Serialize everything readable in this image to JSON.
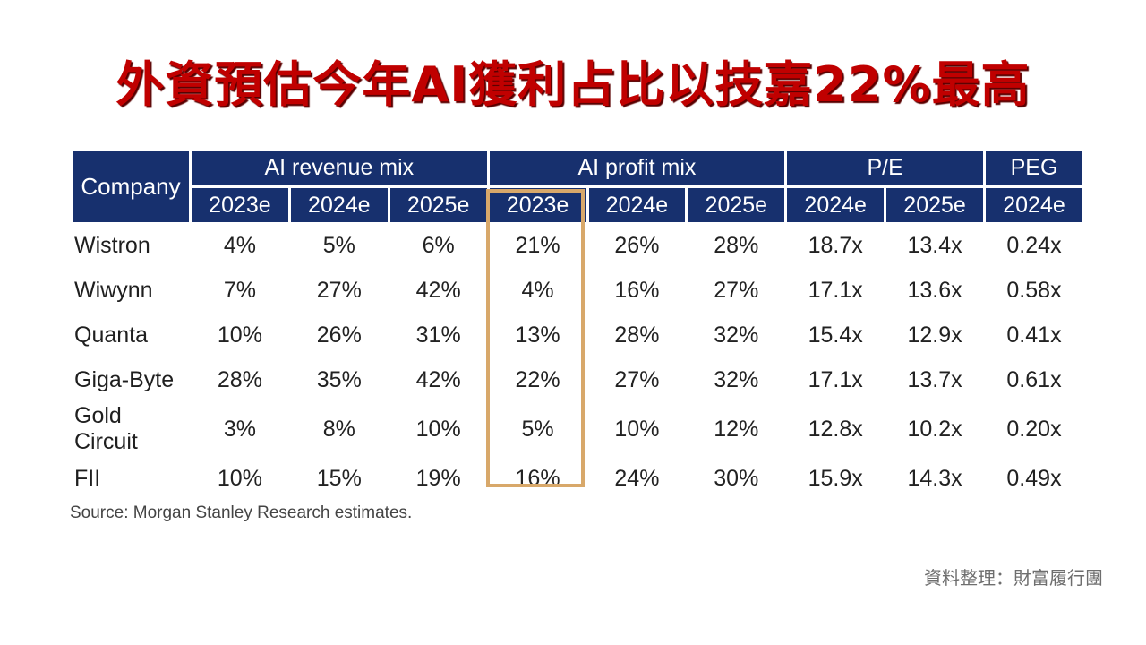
{
  "title": "外資預估今年AI獲利占比以技嘉22%最高",
  "table": {
    "company_header": "Company",
    "groups": [
      "AI revenue mix",
      "AI profit mix",
      "P/E",
      "PEG"
    ],
    "years": [
      "2023e",
      "2024e",
      "2025e",
      "2023e",
      "2024e",
      "2025e",
      "2024e",
      "2025e",
      "2024e"
    ],
    "rows": [
      {
        "company": "Wistron",
        "values": [
          "4%",
          "5%",
          "6%",
          "21%",
          "26%",
          "28%",
          "18.7x",
          "13.4x",
          "0.24x"
        ]
      },
      {
        "company": "Wiwynn",
        "values": [
          "7%",
          "27%",
          "42%",
          "4%",
          "16%",
          "27%",
          "17.1x",
          "13.6x",
          "0.58x"
        ]
      },
      {
        "company": "Quanta",
        "values": [
          "10%",
          "26%",
          "31%",
          "13%",
          "28%",
          "32%",
          "15.4x",
          "12.9x",
          "0.41x"
        ]
      },
      {
        "company": "Giga-Byte",
        "values": [
          "28%",
          "35%",
          "42%",
          "22%",
          "27%",
          "32%",
          "17.1x",
          "13.7x",
          "0.61x"
        ]
      },
      {
        "company": "Gold Circuit",
        "values": [
          "3%",
          "8%",
          "10%",
          "5%",
          "10%",
          "12%",
          "12.8x",
          "10.2x",
          "0.20x"
        ]
      },
      {
        "company": "FII",
        "values": [
          "10%",
          "15%",
          "19%",
          "16%",
          "24%",
          "30%",
          "15.9x",
          "14.3x",
          "0.49x"
        ]
      }
    ]
  },
  "source": "Source: Morgan Stanley Research estimates.",
  "credit": "資料整理：財富履行團",
  "colors": {
    "title": "#c00000",
    "header_bg": "#17306e",
    "highlight_border": "#d8a86a"
  }
}
